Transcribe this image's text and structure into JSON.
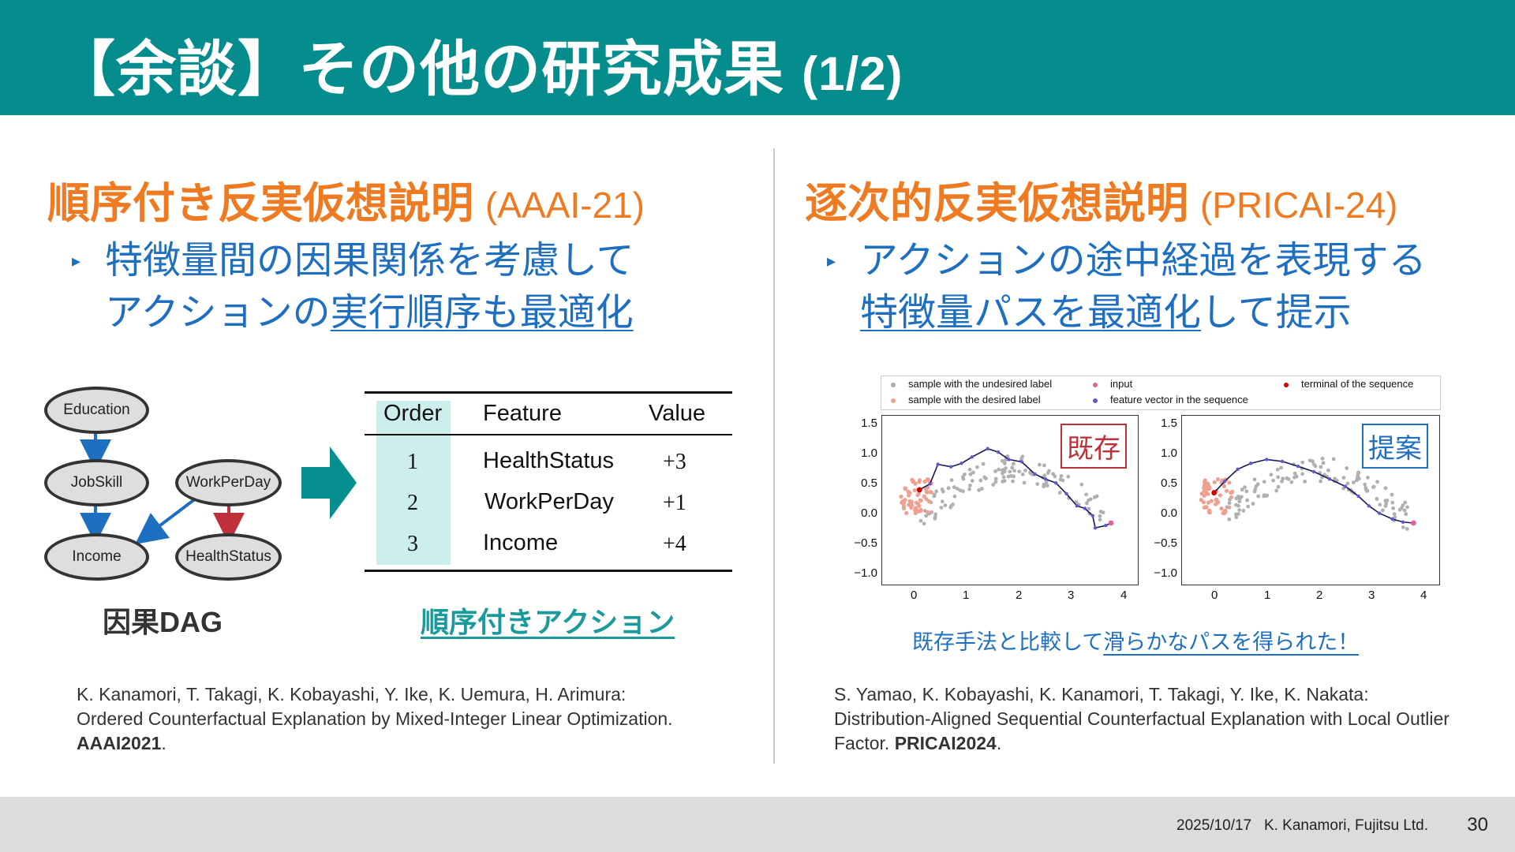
{
  "header": {
    "title": "【余談】その他の研究成果",
    "title_suffix": "(1/2)"
  },
  "left": {
    "title": "順序付き反実仮想説明",
    "venue": "(AAAI-21)",
    "bullet_line1": "特徴量間の因果関係を考慮して",
    "bullet_line2_plain": "アクションの",
    "bullet_line2_underlined": "実行順序も最適化",
    "dag": {
      "nodes": [
        "Education",
        "JobSkill",
        "WorkPerDay",
        "Income",
        "HealthStatus"
      ],
      "caption": "因果DAG"
    },
    "table": {
      "headers": [
        "Order",
        "Feature",
        "Value"
      ],
      "rows": [
        {
          "order": "1",
          "feature": "HealthStatus",
          "value": "+3"
        },
        {
          "order": "2",
          "feature": "WorkPerDay",
          "value": "+1"
        },
        {
          "order": "3",
          "feature": "Income",
          "value": "+4"
        }
      ]
    },
    "table_caption": "順序付きアクション",
    "reference": {
      "authors": "K. Kanamori, T. Takagi, K. Kobayashi, Y. Ike, K. Uemura, H. Arimura:",
      "title": "Ordered Counterfactual Explanation by Mixed-Integer Linear Optimization.",
      "venue": "AAAI2021",
      "end": "."
    }
  },
  "right": {
    "title": "逐次的反実仮想説明",
    "venue": "(PRICAI-24)",
    "bullet_line1": "アクションの途中経過を表現する",
    "bullet_line2_underlined": "特徴量パスを最適化",
    "bullet_line2_plain": "して提示",
    "legend": [
      {
        "label": "sample with the undesired label",
        "color": "#aaaaaa"
      },
      {
        "label": "sample with the desired label",
        "color": "#f0a090"
      },
      {
        "label": "input",
        "color": "#e060a0"
      },
      {
        "label": "feature vector in the sequence",
        "color": "#6655cc"
      },
      {
        "label": "terminal of the sequence",
        "color": "#cc0000"
      }
    ],
    "plots": [
      {
        "tag": "既存",
        "tag_color": "#c0303a"
      },
      {
        "tag": "提案",
        "tag_color": "#1f6fc0"
      }
    ],
    "y_ticks": [
      "1.5",
      "1.0",
      "0.5",
      "0.0",
      "−0.5",
      "−1.0"
    ],
    "x_ticks": [
      "0",
      "1",
      "2",
      "3",
      "4"
    ],
    "compare_plain": "既存手法と比較して",
    "compare_underlined": "滑らかなパスを得られた！",
    "reference": {
      "authors": "S. Yamao, K. Kobayashi, K. Kanamori, T. Takagi, Y. Ike, K. Nakata:",
      "title": "Distribution-Aligned Sequential Counterfactual Explanation with Local Outlier",
      "title2": "Factor.",
      "venue": "PRICAI2024",
      "end": "."
    }
  },
  "footer": {
    "date": "2025/10/17",
    "author": "K. Kanamori,  Fujitsu Ltd.",
    "page": "30"
  },
  "colors": {
    "header": "#058d8d",
    "accent_orange": "#ee7a22",
    "accent_blue": "#1f6fc0",
    "teal": "#1a9a9a"
  }
}
